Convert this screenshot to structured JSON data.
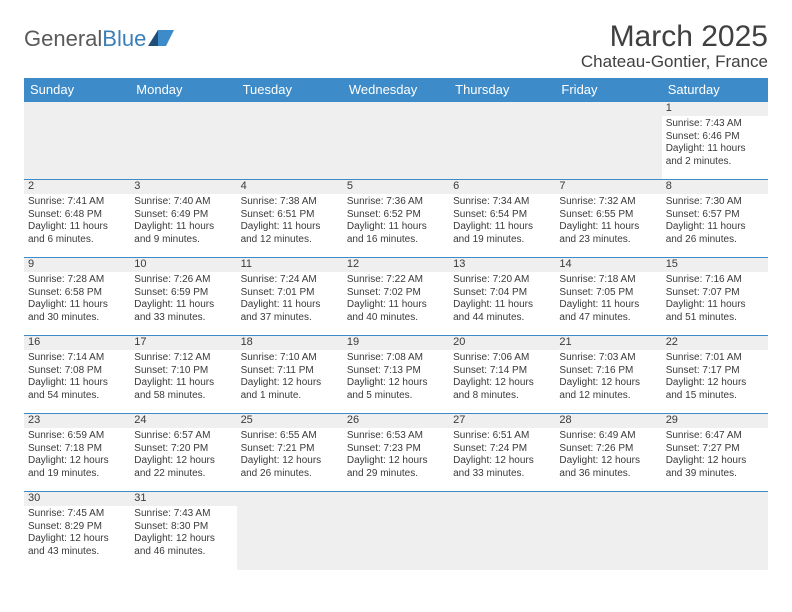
{
  "brand": {
    "text1": "General",
    "text2": "Blue"
  },
  "title": "March 2025",
  "location": "Chateau-Gontier, France",
  "colors": {
    "header_bg": "#3d8bc8",
    "header_text": "#ffffff",
    "border": "#3d8bc8",
    "day_bar_bg": "#efefef",
    "text": "#3a3a3a",
    "logo_gray": "#5a5a5a",
    "logo_blue": "#3a7fb8"
  },
  "weekdays": [
    "Sunday",
    "Monday",
    "Tuesday",
    "Wednesday",
    "Thursday",
    "Friday",
    "Saturday"
  ],
  "weeks": [
    [
      null,
      null,
      null,
      null,
      null,
      null,
      {
        "n": "1",
        "sr": "Sunrise: 7:43 AM",
        "ss": "Sunset: 6:46 PM",
        "dl": "Daylight: 11 hours and 2 minutes."
      }
    ],
    [
      {
        "n": "2",
        "sr": "Sunrise: 7:41 AM",
        "ss": "Sunset: 6:48 PM",
        "dl": "Daylight: 11 hours and 6 minutes."
      },
      {
        "n": "3",
        "sr": "Sunrise: 7:40 AM",
        "ss": "Sunset: 6:49 PM",
        "dl": "Daylight: 11 hours and 9 minutes."
      },
      {
        "n": "4",
        "sr": "Sunrise: 7:38 AM",
        "ss": "Sunset: 6:51 PM",
        "dl": "Daylight: 11 hours and 12 minutes."
      },
      {
        "n": "5",
        "sr": "Sunrise: 7:36 AM",
        "ss": "Sunset: 6:52 PM",
        "dl": "Daylight: 11 hours and 16 minutes."
      },
      {
        "n": "6",
        "sr": "Sunrise: 7:34 AM",
        "ss": "Sunset: 6:54 PM",
        "dl": "Daylight: 11 hours and 19 minutes."
      },
      {
        "n": "7",
        "sr": "Sunrise: 7:32 AM",
        "ss": "Sunset: 6:55 PM",
        "dl": "Daylight: 11 hours and 23 minutes."
      },
      {
        "n": "8",
        "sr": "Sunrise: 7:30 AM",
        "ss": "Sunset: 6:57 PM",
        "dl": "Daylight: 11 hours and 26 minutes."
      }
    ],
    [
      {
        "n": "9",
        "sr": "Sunrise: 7:28 AM",
        "ss": "Sunset: 6:58 PM",
        "dl": "Daylight: 11 hours and 30 minutes."
      },
      {
        "n": "10",
        "sr": "Sunrise: 7:26 AM",
        "ss": "Sunset: 6:59 PM",
        "dl": "Daylight: 11 hours and 33 minutes."
      },
      {
        "n": "11",
        "sr": "Sunrise: 7:24 AM",
        "ss": "Sunset: 7:01 PM",
        "dl": "Daylight: 11 hours and 37 minutes."
      },
      {
        "n": "12",
        "sr": "Sunrise: 7:22 AM",
        "ss": "Sunset: 7:02 PM",
        "dl": "Daylight: 11 hours and 40 minutes."
      },
      {
        "n": "13",
        "sr": "Sunrise: 7:20 AM",
        "ss": "Sunset: 7:04 PM",
        "dl": "Daylight: 11 hours and 44 minutes."
      },
      {
        "n": "14",
        "sr": "Sunrise: 7:18 AM",
        "ss": "Sunset: 7:05 PM",
        "dl": "Daylight: 11 hours and 47 minutes."
      },
      {
        "n": "15",
        "sr": "Sunrise: 7:16 AM",
        "ss": "Sunset: 7:07 PM",
        "dl": "Daylight: 11 hours and 51 minutes."
      }
    ],
    [
      {
        "n": "16",
        "sr": "Sunrise: 7:14 AM",
        "ss": "Sunset: 7:08 PM",
        "dl": "Daylight: 11 hours and 54 minutes."
      },
      {
        "n": "17",
        "sr": "Sunrise: 7:12 AM",
        "ss": "Sunset: 7:10 PM",
        "dl": "Daylight: 11 hours and 58 minutes."
      },
      {
        "n": "18",
        "sr": "Sunrise: 7:10 AM",
        "ss": "Sunset: 7:11 PM",
        "dl": "Daylight: 12 hours and 1 minute."
      },
      {
        "n": "19",
        "sr": "Sunrise: 7:08 AM",
        "ss": "Sunset: 7:13 PM",
        "dl": "Daylight: 12 hours and 5 minutes."
      },
      {
        "n": "20",
        "sr": "Sunrise: 7:06 AM",
        "ss": "Sunset: 7:14 PM",
        "dl": "Daylight: 12 hours and 8 minutes."
      },
      {
        "n": "21",
        "sr": "Sunrise: 7:03 AM",
        "ss": "Sunset: 7:16 PM",
        "dl": "Daylight: 12 hours and 12 minutes."
      },
      {
        "n": "22",
        "sr": "Sunrise: 7:01 AM",
        "ss": "Sunset: 7:17 PM",
        "dl": "Daylight: 12 hours and 15 minutes."
      }
    ],
    [
      {
        "n": "23",
        "sr": "Sunrise: 6:59 AM",
        "ss": "Sunset: 7:18 PM",
        "dl": "Daylight: 12 hours and 19 minutes."
      },
      {
        "n": "24",
        "sr": "Sunrise: 6:57 AM",
        "ss": "Sunset: 7:20 PM",
        "dl": "Daylight: 12 hours and 22 minutes."
      },
      {
        "n": "25",
        "sr": "Sunrise: 6:55 AM",
        "ss": "Sunset: 7:21 PM",
        "dl": "Daylight: 12 hours and 26 minutes."
      },
      {
        "n": "26",
        "sr": "Sunrise: 6:53 AM",
        "ss": "Sunset: 7:23 PM",
        "dl": "Daylight: 12 hours and 29 minutes."
      },
      {
        "n": "27",
        "sr": "Sunrise: 6:51 AM",
        "ss": "Sunset: 7:24 PM",
        "dl": "Daylight: 12 hours and 33 minutes."
      },
      {
        "n": "28",
        "sr": "Sunrise: 6:49 AM",
        "ss": "Sunset: 7:26 PM",
        "dl": "Daylight: 12 hours and 36 minutes."
      },
      {
        "n": "29",
        "sr": "Sunrise: 6:47 AM",
        "ss": "Sunset: 7:27 PM",
        "dl": "Daylight: 12 hours and 39 minutes."
      }
    ],
    [
      {
        "n": "30",
        "sr": "Sunrise: 7:45 AM",
        "ss": "Sunset: 8:29 PM",
        "dl": "Daylight: 12 hours and 43 minutes."
      },
      {
        "n": "31",
        "sr": "Sunrise: 7:43 AM",
        "ss": "Sunset: 8:30 PM",
        "dl": "Daylight: 12 hours and 46 minutes."
      },
      null,
      null,
      null,
      null,
      null
    ]
  ]
}
